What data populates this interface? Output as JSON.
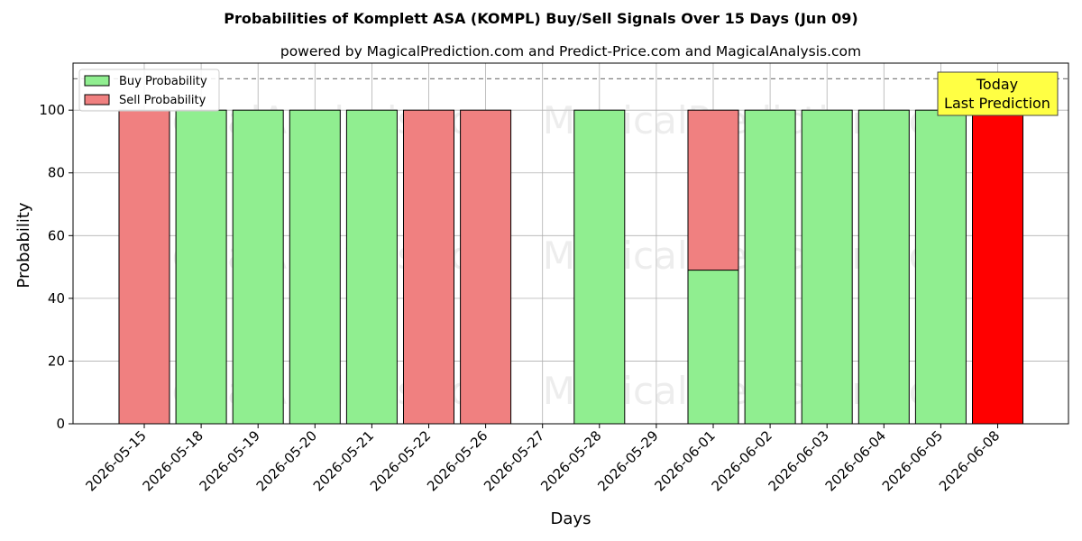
{
  "chart_data": {
    "type": "bar",
    "title": "Probabilities of Komplett ASA (KOMPL) Buy/Sell Signals Over 15 Days (Jun 09)",
    "subtitle": "powered by MagicalPrediction.com and Predict-Price.com and MagicalAnalysis.com",
    "xlabel": "Days",
    "ylabel": "Probability",
    "ylim": [
      0,
      115
    ],
    "yticks": [
      0,
      20,
      40,
      60,
      80,
      100
    ],
    "grid": true,
    "stacked": true,
    "reference_line": 110,
    "categories": [
      "2026-05-15",
      "2026-05-18",
      "2026-05-19",
      "2026-05-20",
      "2026-05-21",
      "2026-05-22",
      "2026-05-26",
      "2026-05-27",
      "2026-05-28",
      "2026-05-29",
      "2026-06-01",
      "2026-06-02",
      "2026-06-03",
      "2026-06-04",
      "2026-06-05",
      "2026-06-08"
    ],
    "series": [
      {
        "name": "Buy Probability",
        "color": "#90EE90",
        "values": [
          0,
          100,
          100,
          100,
          100,
          0,
          0,
          0,
          100,
          0,
          49,
          100,
          100,
          100,
          100,
          0
        ]
      },
      {
        "name": "Sell Probability",
        "color": "#F08080",
        "values": [
          100,
          0,
          0,
          0,
          0,
          100,
          100,
          0,
          0,
          0,
          51,
          0,
          0,
          0,
          0,
          0
        ]
      }
    ],
    "highlight": {
      "category": "2026-06-08",
      "value": 100,
      "color": "#FF0000"
    },
    "legend": {
      "position": "top-left",
      "entries": [
        "Buy Probability",
        "Sell Probability"
      ]
    },
    "annotation": {
      "lines": [
        "Today",
        "Last Prediction"
      ],
      "position": "top-right",
      "background": "#FFFF44"
    },
    "watermarks": [
      "MagicalAnalysis.com",
      "MagicalPrediction.com"
    ]
  }
}
